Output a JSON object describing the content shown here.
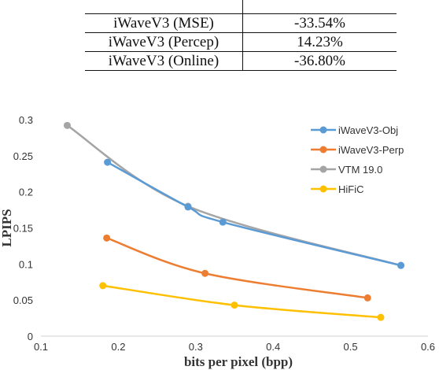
{
  "table": {
    "rows": [
      {
        "method": "",
        "value": ""
      },
      {
        "method": "iWaveV3 (MSE)",
        "value": "-33.54%"
      },
      {
        "method": "iWaveV3 (Percep)",
        "value": "14.23%"
      },
      {
        "method": "iWaveV3 (Online)",
        "value": "-36.80%"
      }
    ]
  },
  "chart_data": {
    "type": "line",
    "xlabel": "bits per pixel (bpp)",
    "ylabel": "LPIPS",
    "xlim": [
      0.1,
      0.6
    ],
    "ylim": [
      0,
      0.3
    ],
    "xticks": [
      "0.1",
      "0.2",
      "0.3",
      "0.4",
      "0.5",
      "0.6"
    ],
    "yticks": [
      "0",
      "0.05",
      "0.1",
      "0.15",
      "0.2",
      "0.25",
      "0.3"
    ],
    "grid": false,
    "legend_position": "top-right",
    "series": [
      {
        "name": "iWaveV3-Obj",
        "color": "#5b9bd5",
        "x": [
          0.186,
          0.29,
          0.335,
          0.565
        ],
        "y": [
          0.241,
          0.179,
          0.158,
          0.098
        ]
      },
      {
        "name": "iWaveV3-Perp",
        "color": "#ed7d31",
        "x": [
          0.185,
          0.312,
          0.522
        ],
        "y": [
          0.136,
          0.087,
          0.053
        ]
      },
      {
        "name": "VTM 19.0",
        "color": "#a5a5a5",
        "x": [
          0.134,
          0.29,
          0.565
        ],
        "y": [
          0.292,
          0.18,
          0.098
        ]
      },
      {
        "name": "HiFiC",
        "color": "#ffc000",
        "x": [
          0.18,
          0.35,
          0.539
        ],
        "y": [
          0.07,
          0.043,
          0.026
        ]
      }
    ]
  }
}
